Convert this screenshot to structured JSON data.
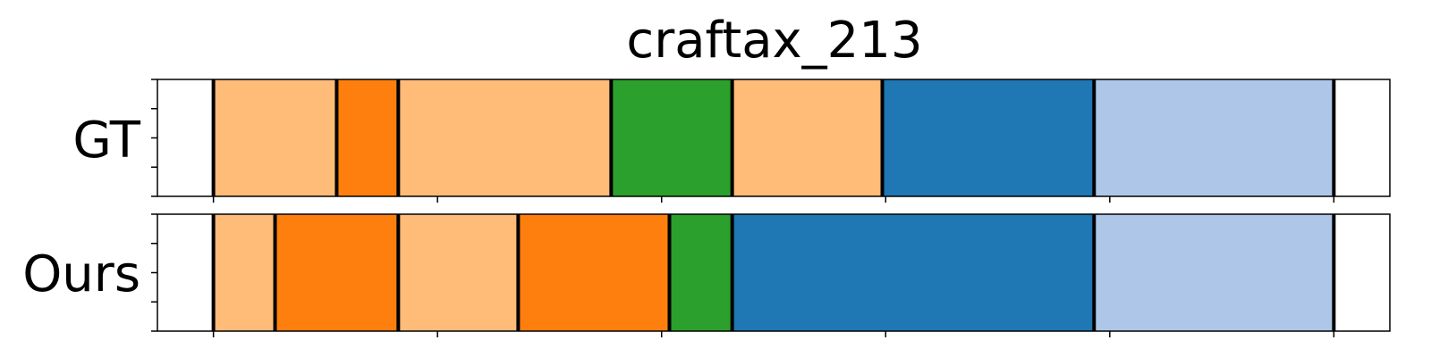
{
  "chart_data": {
    "type": "bar",
    "title": "craftax_213",
    "xlabel": "",
    "ylabel": "",
    "xlim": [
      0,
      110
    ],
    "grid": false,
    "legend": "none",
    "rows": [
      {
        "label": "GT",
        "segments": [
          {
            "start": 5,
            "end": 16,
            "color": "#ffbb78"
          },
          {
            "start": 16,
            "end": 21.5,
            "color": "#ff7f0e"
          },
          {
            "start": 21.5,
            "end": 40.5,
            "color": "#ffbb78"
          },
          {
            "start": 40.5,
            "end": 51.3,
            "color": "#2ca02c"
          },
          {
            "start": 51.3,
            "end": 64.7,
            "color": "#ffbb78"
          },
          {
            "start": 64.7,
            "end": 83.6,
            "color": "#1f77b4"
          },
          {
            "start": 83.6,
            "end": 105,
            "color": "#aec7e8"
          }
        ]
      },
      {
        "label": "Ours",
        "segments": [
          {
            "start": 5,
            "end": 10.5,
            "color": "#ffbb78"
          },
          {
            "start": 10.5,
            "end": 21.5,
            "color": "#ff7f0e"
          },
          {
            "start": 21.5,
            "end": 32.2,
            "color": "#ffbb78"
          },
          {
            "start": 32.2,
            "end": 45.7,
            "color": "#ff7f0e"
          },
          {
            "start": 45.7,
            "end": 51.3,
            "color": "#2ca02c"
          },
          {
            "start": 51.3,
            "end": 83.6,
            "color": "#1f77b4"
          },
          {
            "start": 83.6,
            "end": 105,
            "color": "#aec7e8"
          }
        ]
      }
    ],
    "x_ticks": [
      5,
      25,
      45,
      65,
      85,
      105
    ],
    "y_ticks_per_row": 5,
    "boundary_color": "#000000"
  }
}
